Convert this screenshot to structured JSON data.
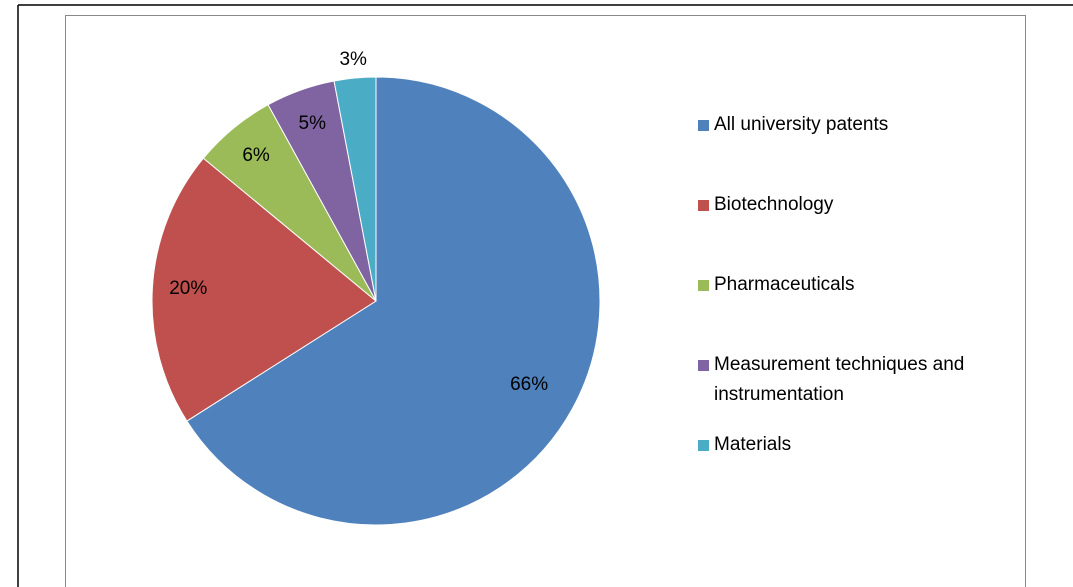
{
  "chart_data": {
    "type": "pie",
    "categories": [
      "All university patents",
      "Biotechnology",
      "Pharmaceuticals",
      "Measurement techniques and instrumentation",
      "Materials"
    ],
    "values": [
      66,
      20,
      6,
      5,
      3
    ],
    "value_labels": [
      "66%",
      "20%",
      "6%",
      "5%",
      "3%"
    ],
    "colors": [
      "#4f81bd",
      "#c0504d",
      "#9bbb59",
      "#8064a2",
      "#4bacc6"
    ],
    "legend": "right"
  }
}
